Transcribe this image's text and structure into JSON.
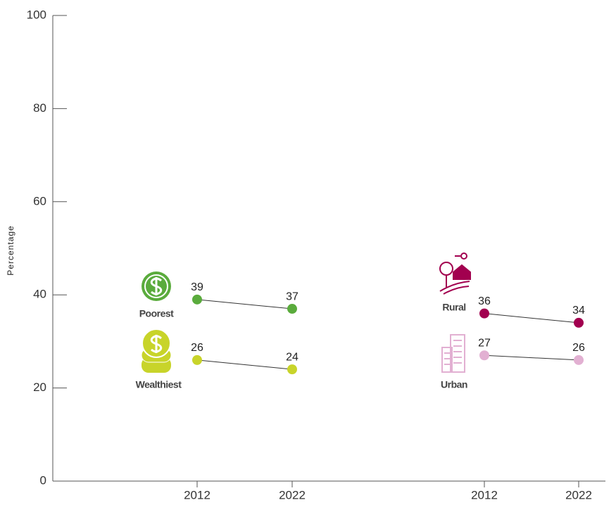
{
  "chart_data": {
    "type": "slope",
    "y_label": "Percentage",
    "categories": [
      "2012",
      "2022",
      "2012",
      "2022"
    ],
    "series": [
      {
        "name": "Poorest",
        "color": "#5aab3c",
        "values": [
          39,
          37,
          null,
          null
        ]
      },
      {
        "name": "Wealthiest",
        "color": "#c8d42a",
        "values": [
          26,
          24,
          null,
          null
        ]
      },
      {
        "name": "Rural",
        "color": "#a2004f",
        "values": [
          null,
          null,
          36,
          34
        ]
      },
      {
        "name": "Urban",
        "color": "#e2b0d2",
        "values": [
          null,
          null,
          27,
          26
        ]
      }
    ],
    "ylim": [
      0,
      100
    ],
    "yticks": [
      0,
      20,
      40,
      60,
      80,
      100
    ]
  }
}
